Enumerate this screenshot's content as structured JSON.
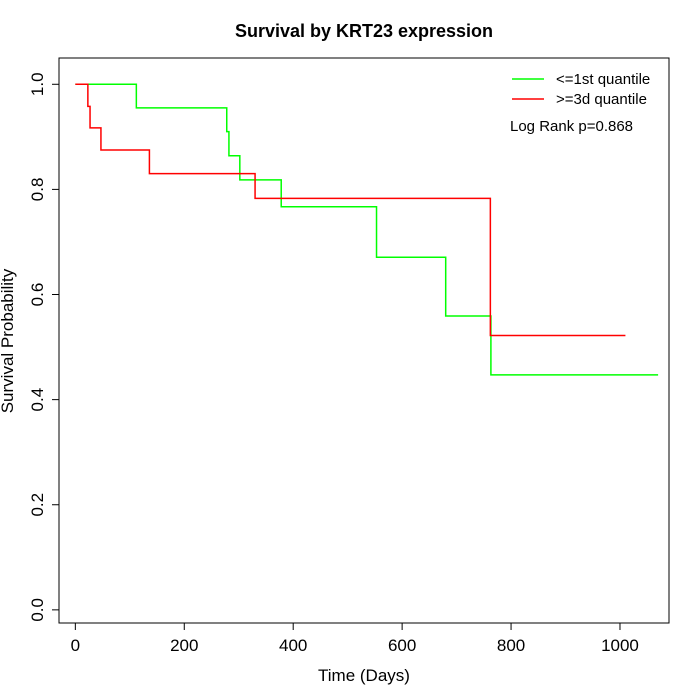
{
  "chart_data": {
    "type": "line",
    "step": true,
    "title": "Survival by KRT23 expression",
    "xlabel": "Time (Days)",
    "ylabel": "Survival Probability",
    "xlim": [
      -30,
      1090
    ],
    "ylim": [
      -0.025,
      1.05
    ],
    "xticks": [
      0,
      200,
      400,
      600,
      800,
      1000
    ],
    "yticks": [
      0.0,
      0.2,
      0.4,
      0.6,
      0.8,
      1.0
    ],
    "xtick_labels": [
      "0",
      "200",
      "400",
      "600",
      "800",
      "1000"
    ],
    "ytick_labels": [
      "0.0",
      "0.2",
      "0.4",
      "0.6",
      "0.8",
      "1.0"
    ],
    "grid": false,
    "legend_position": "top-right",
    "annotation": "Log Rank p=0.868",
    "series": [
      {
        "name": "<=1st quantile",
        "color": "#00ff00",
        "x": [
          0,
          112,
          278,
          282,
          302,
          378,
          553,
          680,
          763,
          1070
        ],
        "y": [
          1.0,
          0.955,
          0.91,
          0.864,
          0.818,
          0.767,
          0.671,
          0.559,
          0.447,
          0.447
        ]
      },
      {
        "name": ">=3d quantile",
        "color": "#ff0000",
        "x": [
          0,
          23,
          27,
          47,
          136,
          330,
          762,
          1010
        ],
        "y": [
          1.0,
          0.958,
          0.917,
          0.875,
          0.83,
          0.783,
          0.522,
          0.522
        ]
      }
    ]
  }
}
